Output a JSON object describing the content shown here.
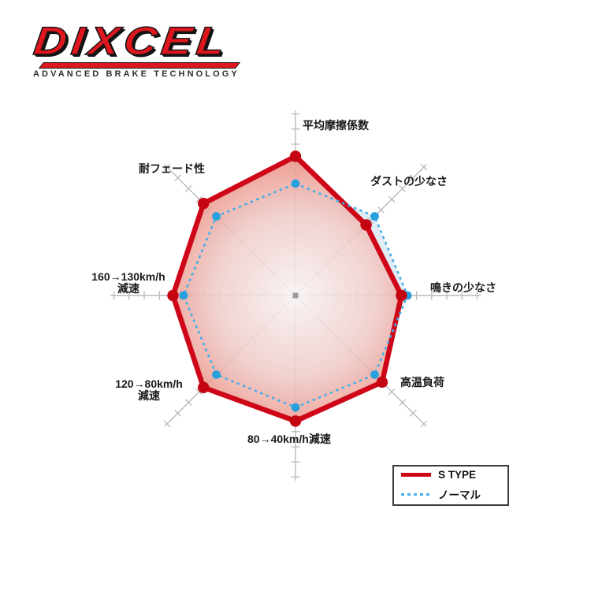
{
  "logo": {
    "title": "DIXCEL",
    "subtitle": "ADVANCED BRAKE TECHNOLOGY",
    "brand_color": "#e0161f"
  },
  "chart_data": {
    "type": "radar",
    "title": "",
    "axes": [
      {
        "label": "平均摩擦係数"
      },
      {
        "label": "ダストの少なさ"
      },
      {
        "label": "鳴きの少なさ"
      },
      {
        "label": "高温負荷"
      },
      {
        "label": "80→40km/h減速"
      },
      {
        "label": "120→80km/h\n減速"
      },
      {
        "label": "160→130km/h\n減速"
      },
      {
        "label": "耐フェード性"
      }
    ],
    "ticks_per_axis": 12,
    "axis_max": 12,
    "grid_color": "#b9b9b9",
    "center_marker_color": "#9b9b9b",
    "series": [
      {
        "name": "S TYPE",
        "style": "solid",
        "color": "#ce0617",
        "dot_color": "#c40410",
        "fill_center": "#fdf5f4",
        "fill_edge": "#e88c80",
        "values": [
          9.2,
          6.6,
          7.0,
          8.1,
          8.3,
          8.6,
          8.1,
          8.6
        ]
      },
      {
        "name": "ノーマル",
        "style": "dotted",
        "color": "#45aee6",
        "dot_color": "#29a0de",
        "fill": "rgba(175,205,228,0.38)",
        "values": [
          7.4,
          7.4,
          7.4,
          7.4,
          7.4,
          7.4,
          7.4,
          7.4
        ]
      }
    ],
    "legend_position": "bottom-right"
  }
}
